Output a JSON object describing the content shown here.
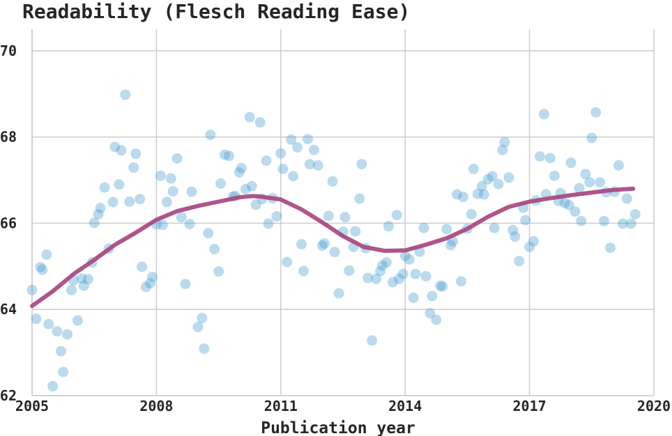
{
  "chart_data": {
    "type": "scatter",
    "title": "Readability (Flesch Reading Ease)",
    "xlabel": "Publication year",
    "ylabel": "",
    "xlim": [
      2005,
      2020
    ],
    "ylim": [
      62,
      70.5
    ],
    "xticks": [
      2005,
      2008,
      2011,
      2014,
      2017,
      2020
    ],
    "yticks": [
      62,
      64,
      66,
      68,
      70
    ],
    "grid": true,
    "colors": {
      "points": "#4a9dd1",
      "trend": "#a8467f"
    },
    "points": [
      [
        2005.0,
        64.45
      ],
      [
        2005.1,
        63.78
      ],
      [
        2005.2,
        64.98
      ],
      [
        2005.25,
        64.92
      ],
      [
        2005.35,
        65.27
      ],
      [
        2005.4,
        63.66
      ],
      [
        2005.5,
        62.22
      ],
      [
        2005.6,
        63.49
      ],
      [
        2005.7,
        63.03
      ],
      [
        2005.75,
        62.55
      ],
      [
        2005.85,
        63.42
      ],
      [
        2005.95,
        64.45
      ],
      [
        2006.0,
        64.68
      ],
      [
        2006.1,
        63.74
      ],
      [
        2006.2,
        64.72
      ],
      [
        2006.25,
        64.55
      ],
      [
        2006.35,
        64.7
      ],
      [
        2006.45,
        65.09
      ],
      [
        2006.5,
        66.01
      ],
      [
        2006.6,
        66.21
      ],
      [
        2006.65,
        66.35
      ],
      [
        2006.75,
        66.83
      ],
      [
        2006.85,
        65.41
      ],
      [
        2006.95,
        66.49
      ],
      [
        2007.0,
        67.77
      ],
      [
        2007.1,
        66.9
      ],
      [
        2007.15,
        67.69
      ],
      [
        2007.25,
        68.98
      ],
      [
        2007.35,
        66.5
      ],
      [
        2007.45,
        67.29
      ],
      [
        2007.5,
        67.61
      ],
      [
        2007.6,
        66.56
      ],
      [
        2007.65,
        64.99
      ],
      [
        2007.75,
        64.52
      ],
      [
        2007.85,
        64.61
      ],
      [
        2007.9,
        64.75
      ],
      [
        2008.0,
        65.97
      ],
      [
        2008.1,
        67.1
      ],
      [
        2008.15,
        65.96
      ],
      [
        2008.25,
        66.49
      ],
      [
        2008.35,
        67.04
      ],
      [
        2008.4,
        66.74
      ],
      [
        2008.5,
        67.5
      ],
      [
        2008.6,
        66.14
      ],
      [
        2008.7,
        64.59
      ],
      [
        2008.8,
        65.98
      ],
      [
        2008.85,
        66.73
      ],
      [
        2009.0,
        63.59
      ],
      [
        2009.1,
        63.8
      ],
      [
        2009.15,
        63.09
      ],
      [
        2009.25,
        65.77
      ],
      [
        2009.3,
        68.05
      ],
      [
        2009.4,
        65.4
      ],
      [
        2009.5,
        64.88
      ],
      [
        2009.55,
        66.92
      ],
      [
        2009.65,
        67.59
      ],
      [
        2009.75,
        67.56
      ],
      [
        2009.85,
        66.62
      ],
      [
        2009.9,
        66.63
      ],
      [
        2010.0,
        67.18
      ],
      [
        2010.05,
        67.28
      ],
      [
        2010.15,
        66.79
      ],
      [
        2010.25,
        68.46
      ],
      [
        2010.3,
        66.86
      ],
      [
        2010.4,
        66.43
      ],
      [
        2010.5,
        68.34
      ],
      [
        2010.55,
        66.56
      ],
      [
        2010.65,
        67.45
      ],
      [
        2010.7,
        65.99
      ],
      [
        2010.8,
        66.58
      ],
      [
        2010.9,
        66.16
      ],
      [
        2011.0,
        67.62
      ],
      [
        2011.05,
        67.26
      ],
      [
        2011.15,
        65.1
      ],
      [
        2011.25,
        67.94
      ],
      [
        2011.3,
        67.09
      ],
      [
        2011.4,
        67.76
      ],
      [
        2011.5,
        65.51
      ],
      [
        2011.55,
        64.89
      ],
      [
        2011.65,
        67.95
      ],
      [
        2011.7,
        67.37
      ],
      [
        2011.8,
        67.7
      ],
      [
        2011.9,
        67.34
      ],
      [
        2012.0,
        65.48
      ],
      [
        2012.05,
        65.53
      ],
      [
        2012.15,
        66.17
      ],
      [
        2012.25,
        66.97
      ],
      [
        2012.3,
        65.33
      ],
      [
        2012.4,
        64.37
      ],
      [
        2012.5,
        65.8
      ],
      [
        2012.55,
        66.14
      ],
      [
        2012.65,
        64.9
      ],
      [
        2012.75,
        65.45
      ],
      [
        2012.8,
        65.81
      ],
      [
        2012.9,
        66.57
      ],
      [
        2012.95,
        67.37
      ],
      [
        2013.05,
        65.42
      ],
      [
        2013.1,
        64.73
      ],
      [
        2013.2,
        63.28
      ],
      [
        2013.3,
        64.71
      ],
      [
        2013.4,
        64.89
      ],
      [
        2013.45,
        65.02
      ],
      [
        2013.55,
        65.09
      ],
      [
        2013.6,
        65.93
      ],
      [
        2013.7,
        64.63
      ],
      [
        2013.8,
        66.19
      ],
      [
        2013.85,
        64.71
      ],
      [
        2013.95,
        64.82
      ],
      [
        2014.0,
        65.24
      ],
      [
        2014.1,
        65.16
      ],
      [
        2014.2,
        64.27
      ],
      [
        2014.25,
        64.82
      ],
      [
        2014.35,
        65.34
      ],
      [
        2014.45,
        65.89
      ],
      [
        2014.5,
        64.77
      ],
      [
        2014.6,
        63.91
      ],
      [
        2014.65,
        64.31
      ],
      [
        2014.75,
        63.76
      ],
      [
        2014.85,
        64.55
      ],
      [
        2014.9,
        64.53
      ],
      [
        2015.0,
        65.86
      ],
      [
        2015.1,
        65.49
      ],
      [
        2015.15,
        65.58
      ],
      [
        2015.25,
        66.67
      ],
      [
        2015.35,
        64.65
      ],
      [
        2015.4,
        66.61
      ],
      [
        2015.5,
        65.87
      ],
      [
        2015.6,
        66.21
      ],
      [
        2015.65,
        67.26
      ],
      [
        2015.75,
        66.68
      ],
      [
        2015.85,
        66.86
      ],
      [
        2015.9,
        66.67
      ],
      [
        2016.0,
        67.02
      ],
      [
        2016.1,
        67.09
      ],
      [
        2016.15,
        65.89
      ],
      [
        2016.25,
        66.91
      ],
      [
        2016.35,
        67.7
      ],
      [
        2016.4,
        67.88
      ],
      [
        2016.5,
        67.06
      ],
      [
        2016.6,
        65.84
      ],
      [
        2016.65,
        65.69
      ],
      [
        2016.75,
        65.12
      ],
      [
        2016.85,
        66.36
      ],
      [
        2016.9,
        66.07
      ],
      [
        2017.0,
        65.45
      ],
      [
        2017.1,
        65.58
      ],
      [
        2017.15,
        66.53
      ],
      [
        2017.25,
        67.55
      ],
      [
        2017.35,
        68.53
      ],
      [
        2017.4,
        66.67
      ],
      [
        2017.5,
        67.51
      ],
      [
        2017.6,
        67.1
      ],
      [
        2017.7,
        66.52
      ],
      [
        2017.75,
        66.7
      ],
      [
        2017.85,
        66.47
      ],
      [
        2017.95,
        66.42
      ],
      [
        2018.0,
        67.4
      ],
      [
        2018.1,
        66.27
      ],
      [
        2018.2,
        66.81
      ],
      [
        2018.25,
        66.05
      ],
      [
        2018.35,
        67.14
      ],
      [
        2018.45,
        66.95
      ],
      [
        2018.5,
        67.98
      ],
      [
        2018.6,
        68.57
      ],
      [
        2018.7,
        66.95
      ],
      [
        2018.8,
        66.05
      ],
      [
        2018.85,
        66.72
      ],
      [
        2018.95,
        65.43
      ],
      [
        2019.05,
        66.73
      ],
      [
        2019.15,
        67.34
      ],
      [
        2019.25,
        65.99
      ],
      [
        2019.35,
        66.57
      ],
      [
        2019.45,
        65.99
      ],
      [
        2019.55,
        66.21
      ]
    ],
    "trend": [
      [
        2005.0,
        64.08
      ],
      [
        2005.5,
        64.42
      ],
      [
        2006.0,
        64.82
      ],
      [
        2006.5,
        65.15
      ],
      [
        2007.0,
        65.5
      ],
      [
        2007.5,
        65.78
      ],
      [
        2008.0,
        66.08
      ],
      [
        2008.5,
        66.28
      ],
      [
        2009.0,
        66.4
      ],
      [
        2009.5,
        66.5
      ],
      [
        2010.0,
        66.6
      ],
      [
        2010.3,
        66.63
      ],
      [
        2010.5,
        66.62
      ],
      [
        2011.0,
        66.55
      ],
      [
        2011.5,
        66.32
      ],
      [
        2012.0,
        66.02
      ],
      [
        2012.5,
        65.7
      ],
      [
        2013.0,
        65.45
      ],
      [
        2013.5,
        65.36
      ],
      [
        2014.0,
        65.37
      ],
      [
        2014.5,
        65.5
      ],
      [
        2015.0,
        65.65
      ],
      [
        2015.5,
        65.87
      ],
      [
        2016.0,
        66.15
      ],
      [
        2016.5,
        66.38
      ],
      [
        2017.0,
        66.5
      ],
      [
        2017.5,
        66.58
      ],
      [
        2018.0,
        66.65
      ],
      [
        2018.5,
        66.71
      ],
      [
        2019.0,
        66.77
      ],
      [
        2019.5,
        66.8
      ]
    ]
  }
}
